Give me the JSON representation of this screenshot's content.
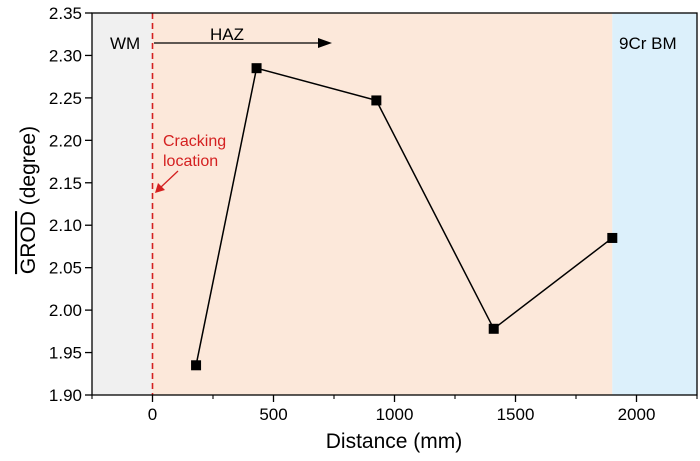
{
  "chart_data": {
    "type": "line",
    "xlabel": "Distance (mm)",
    "ylabel_overline": "GROD",
    "ylabel_unit": " (degree)",
    "xlim": [
      -250,
      2250
    ],
    "ylim": [
      1.9,
      2.35
    ],
    "xticks": [
      0,
      500,
      1000,
      1500,
      2000
    ],
    "yticks": [
      1.9,
      1.95,
      2.0,
      2.05,
      2.1,
      2.15,
      2.2,
      2.25,
      2.3,
      2.35
    ],
    "grid": false,
    "x": [
      180,
      430,
      925,
      1410,
      1900
    ],
    "y": [
      1.935,
      2.285,
      2.247,
      1.978,
      2.085
    ],
    "regions": [
      {
        "label": "WM",
        "x_start": -250,
        "x_end": 0,
        "color": "#f0f0f0"
      },
      {
        "label": "HAZ",
        "x_start": 0,
        "x_end": 1900,
        "color": "#fce8da"
      },
      {
        "label": "9Cr BM",
        "x_start": 1900,
        "x_end": 2250,
        "color": "#dcf0fb"
      }
    ],
    "annotation": {
      "lines": [
        "Cracking",
        "location"
      ],
      "x": 0,
      "color": "#d42020"
    },
    "marker_color": "#000000",
    "line_color": "#000000"
  }
}
